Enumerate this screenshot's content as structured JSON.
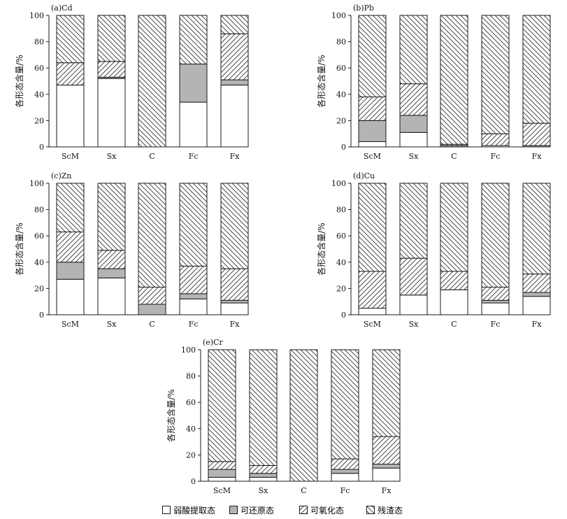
{
  "chart_data": [
    {
      "type": "bar",
      "title": "(a)Cd",
      "ylabel": "各形态含量/%",
      "categories": [
        "ScM",
        "Sx",
        "C",
        "Fc",
        "Fx"
      ],
      "ylim": [
        0,
        100
      ],
      "yticks": [
        "0",
        "20",
        "40",
        "60",
        "80",
        "100"
      ],
      "series": [
        {
          "name": "弱酸提取态",
          "values": [
            47,
            52,
            0,
            34,
            47
          ]
        },
        {
          "name": "可还原态",
          "values": [
            0,
            1,
            0,
            29,
            4
          ]
        },
        {
          "name": "可氧化态",
          "values": [
            17,
            12,
            0,
            0,
            35
          ]
        },
        {
          "name": "残渣态",
          "values": [
            36,
            35,
            100,
            37,
            14
          ]
        }
      ]
    },
    {
      "type": "bar",
      "title": "(b)Pb",
      "ylabel": "各形态含量/%",
      "categories": [
        "ScM",
        "Sx",
        "C",
        "Fc",
        "Fx"
      ],
      "ylim": [
        0,
        100
      ],
      "yticks": [
        "0",
        "20",
        "40",
        "60",
        "80",
        "100"
      ],
      "series": [
        {
          "name": "弱酸提取态",
          "values": [
            4,
            11,
            0,
            1,
            0
          ]
        },
        {
          "name": "可还原态",
          "values": [
            16,
            13,
            1,
            0,
            1
          ]
        },
        {
          "name": "可氧化态",
          "values": [
            18,
            24,
            1,
            9,
            17
          ]
        },
        {
          "name": "残渣态",
          "values": [
            62,
            52,
            98,
            90,
            82
          ]
        }
      ]
    },
    {
      "type": "bar",
      "title": "(c)Zn",
      "ylabel": "各形态含量/%",
      "categories": [
        "ScM",
        "Sx",
        "C",
        "Fc",
        "Fx"
      ],
      "ylim": [
        0,
        100
      ],
      "yticks": [
        "0",
        "20",
        "40",
        "60",
        "80",
        "100"
      ],
      "series": [
        {
          "name": "弱酸提取态",
          "values": [
            27,
            28,
            0,
            12,
            9
          ]
        },
        {
          "name": "可还原态",
          "values": [
            13,
            7,
            8,
            4,
            2
          ]
        },
        {
          "name": "可氧化态",
          "values": [
            23,
            14,
            13,
            21,
            24
          ]
        },
        {
          "name": "残渣态",
          "values": [
            37,
            51,
            79,
            63,
            65
          ]
        }
      ]
    },
    {
      "type": "bar",
      "title": "(d)Cu",
      "ylabel": "各形态含量/%",
      "categories": [
        "ScM",
        "Sx",
        "C",
        "Fc",
        "Fx"
      ],
      "ylim": [
        0,
        100
      ],
      "yticks": [
        "0",
        "20",
        "40",
        "60",
        "80",
        "100"
      ],
      "series": [
        {
          "name": "弱酸提取态",
          "values": [
            5,
            15,
            19,
            9,
            14
          ]
        },
        {
          "name": "可还原态",
          "values": [
            0,
            0,
            0,
            2,
            3
          ]
        },
        {
          "name": "可氧化态",
          "values": [
            28,
            28,
            14,
            10,
            14
          ]
        },
        {
          "name": "残渣态",
          "values": [
            67,
            57,
            67,
            79,
            69
          ]
        }
      ]
    },
    {
      "type": "bar",
      "title": "(e)Cr",
      "ylabel": "各形态含量/%",
      "categories": [
        "ScM",
        "Sx",
        "C",
        "Fc",
        "Fx"
      ],
      "ylim": [
        0,
        100
      ],
      "yticks": [
        "0",
        "20",
        "40",
        "60",
        "80",
        "100"
      ],
      "series": [
        {
          "name": "弱酸提取态",
          "values": [
            3,
            3,
            0,
            6,
            10
          ]
        },
        {
          "name": "可还原态",
          "values": [
            6,
            3,
            0,
            3,
            3
          ]
        },
        {
          "name": "可氧化态",
          "values": [
            6,
            6,
            0,
            8,
            21
          ]
        },
        {
          "name": "残渣态",
          "values": [
            85,
            88,
            100,
            83,
            66
          ]
        }
      ]
    }
  ],
  "legend": {
    "items": [
      {
        "label": "弱酸提取态",
        "fill": "white"
      },
      {
        "label": "可还原态",
        "fill": "gray"
      },
      {
        "label": "可氧化态",
        "fill": "hatch-forward"
      },
      {
        "label": "残渣态",
        "fill": "hatch-back"
      }
    ]
  },
  "colors": {
    "gray": "#b4b4b4",
    "line": "#1a1a1a",
    "background": "#ffffff"
  }
}
